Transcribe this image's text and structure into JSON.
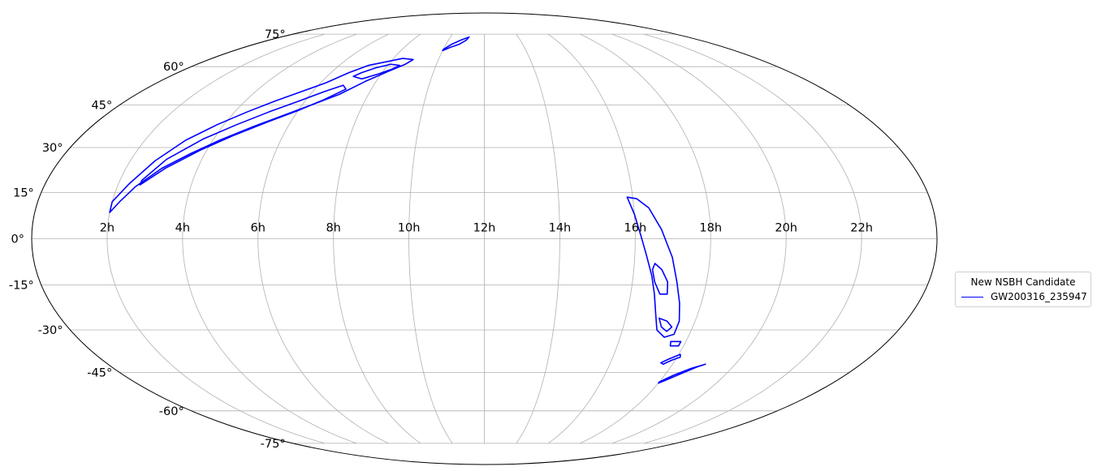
{
  "chart_data": {
    "type": "line",
    "projection": "mollweide",
    "grid": true,
    "legend_placement": "right",
    "x_ticks": [
      "2h",
      "4h",
      "6h",
      "8h",
      "10h",
      "12h",
      "14h",
      "16h",
      "18h",
      "20h",
      "22h"
    ],
    "y_ticks": [
      "75°",
      "60°",
      "45°",
      "30°",
      "15°",
      "0°",
      "-15°",
      "-30°",
      "-45°",
      "-60°",
      "-75°"
    ],
    "legend": {
      "title": "New NSBH Candidate",
      "entries": [
        {
          "label": "GW200316_235947",
          "color": "#0000ff"
        }
      ]
    },
    "series": [
      {
        "name": "GW200316_235947",
        "color": "#0000ff",
        "contours": [
          {
            "level": "outer-north",
            "points": [
              [
                2.0,
                8.5
              ],
              [
                2.2,
                12
              ],
              [
                2.5,
                17
              ],
              [
                3.0,
                23
              ],
              [
                3.6,
                28
              ],
              [
                4.2,
                32.5
              ],
              [
                4.9,
                37
              ],
              [
                5.6,
                41
              ],
              [
                6.3,
                45
              ],
              [
                7.0,
                49
              ],
              [
                7.6,
                54
              ],
              [
                8.2,
                58
              ],
              [
                8.7,
                61
              ],
              [
                8.9,
                63
              ],
              [
                8.4,
                63.5
              ],
              [
                7.8,
                62
              ],
              [
                7.2,
                60.5
              ],
              [
                6.7,
                57.5
              ],
              [
                6.2,
                53.5
              ],
              [
                5.6,
                50
              ],
              [
                5.0,
                46.5
              ],
              [
                4.4,
                42.5
              ],
              [
                3.8,
                38
              ],
              [
                3.2,
                32.5
              ],
              [
                2.7,
                25.5
              ],
              [
                2.3,
                18
              ],
              [
                2.0,
                12
              ]
            ]
          },
          {
            "level": "inner-north-a",
            "points": [
              [
                2.6,
                17.5
              ],
              [
                3.1,
                23
              ],
              [
                3.8,
                29
              ],
              [
                4.5,
                34
              ],
              [
                5.3,
                39
              ],
              [
                6.0,
                43
              ],
              [
                6.6,
                47
              ],
              [
                7.1,
                51
              ],
              [
                6.9,
                52.5
              ],
              [
                6.4,
                50
              ],
              [
                5.8,
                46.5
              ],
              [
                5.1,
                42.5
              ],
              [
                4.4,
                38
              ],
              [
                3.7,
                33
              ],
              [
                3.0,
                26
              ],
              [
                2.6,
                19
              ]
            ]
          },
          {
            "level": "inner-north-b",
            "points": [
              [
                7.4,
                55
              ],
              [
                7.9,
                57
              ],
              [
                8.3,
                59
              ],
              [
                8.5,
                60.5
              ],
              [
                8.1,
                61
              ],
              [
                7.6,
                59.5
              ],
              [
                7.2,
                57.5
              ],
              [
                7.0,
                56
              ]
            ]
          },
          {
            "level": "north-blob",
            "points": [
              [
                10.0,
                67.5
              ],
              [
                10.3,
                70
              ],
              [
                10.7,
                72
              ],
              [
                11.1,
                73.5
              ],
              [
                11.0,
                72
              ],
              [
                10.7,
                70
              ],
              [
                10.3,
                68.5
              ],
              [
                10.0,
                67
              ]
            ]
          },
          {
            "level": "outer-south",
            "points": [
              [
                15.85,
                13.5
              ],
              [
                16.1,
                13
              ],
              [
                16.4,
                10
              ],
              [
                16.7,
                3
              ],
              [
                17.0,
                -6
              ],
              [
                17.2,
                -14
              ],
              [
                17.4,
                -21
              ],
              [
                17.55,
                -27
              ],
              [
                17.55,
                -31.5
              ],
              [
                17.3,
                -32.5
              ],
              [
                17.0,
                -30
              ],
              [
                16.8,
                -24
              ],
              [
                16.65,
                -18
              ],
              [
                16.5,
                -12
              ],
              [
                16.3,
                -5
              ],
              [
                16.15,
                1
              ],
              [
                16.0,
                8
              ]
            ]
          },
          {
            "level": "inner-south-a",
            "points": [
              [
                16.55,
                -8
              ],
              [
                16.75,
                -10
              ],
              [
                16.95,
                -14
              ],
              [
                17.0,
                -18
              ],
              [
                16.8,
                -18
              ],
              [
                16.6,
                -14
              ],
              [
                16.5,
                -10
              ]
            ]
          },
          {
            "level": "inner-south-b",
            "points": [
              [
                16.95,
                -26
              ],
              [
                17.2,
                -27
              ],
              [
                17.4,
                -29
              ],
              [
                17.3,
                -30.5
              ],
              [
                17.1,
                -29
              ]
            ]
          },
          {
            "level": "south-blob-a",
            "points": [
              [
                17.55,
                -34
              ],
              [
                17.85,
                -34
              ],
              [
                17.85,
                -35.5
              ],
              [
                17.6,
                -35.5
              ]
            ]
          },
          {
            "level": "south-blob-b",
            "points": [
              [
                17.6,
                -41.5
              ],
              [
                17.8,
                -40
              ],
              [
                18.05,
                -38.5
              ],
              [
                18.1,
                -39.5
              ],
              [
                17.9,
                -40.5
              ],
              [
                17.7,
                -42
              ]
            ]
          },
          {
            "level": "south-blob-c",
            "points": [
              [
                18.0,
                -48.5
              ],
              [
                18.3,
                -46
              ],
              [
                18.7,
                -43.5
              ],
              [
                19.05,
                -42
              ],
              [
                18.85,
                -43
              ],
              [
                18.5,
                -45.5
              ],
              [
                18.15,
                -48
              ],
              [
                18.0,
                -49
              ]
            ]
          }
        ]
      }
    ]
  }
}
